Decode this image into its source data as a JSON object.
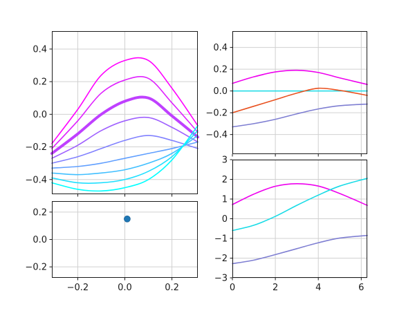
{
  "figure": {
    "background": "#ffffff",
    "axes_background": "#ffffff",
    "grid_color": "#d0d0d0",
    "spine_color": "#1a1a1a",
    "tick_color": "#1a1a1a",
    "label_color": "#1a1a1a",
    "tick_font_size": 13
  },
  "chart_data": [
    {
      "id": "top-left",
      "type": "line",
      "grid": true,
      "xlim": [
        -0.31,
        0.31
      ],
      "ylim": [
        -0.49,
        0.51
      ],
      "xticks": [
        -0.2,
        0.0,
        0.2
      ],
      "xtick_labels": [
        "−0.2",
        "0.0",
        "0.2"
      ],
      "show_xtick_labels": false,
      "yticks": [
        0.4,
        0.2,
        0.0,
        -0.2,
        -0.4
      ],
      "ytick_labels": [
        "0.4",
        "0.2",
        "0.0",
        "−0.2",
        "−0.4"
      ],
      "x": [
        -0.31,
        -0.2,
        -0.1,
        0.0,
        0.1,
        0.2,
        0.31
      ],
      "series": [
        {
          "name": "cool-0-magenta",
          "color": "#ff00ff",
          "width": 1.6,
          "values": [
            -0.18,
            0.03,
            0.24,
            0.33,
            0.33,
            0.16,
            -0.07
          ]
        },
        {
          "name": "cool-1",
          "color": "#df20ff",
          "width": 1.6,
          "values": [
            -0.21,
            -0.04,
            0.13,
            0.21,
            0.22,
            0.07,
            -0.11
          ]
        },
        {
          "name": "cool-2-thick",
          "color": "#bf40ff",
          "width": 4,
          "values": [
            -0.24,
            -0.12,
            0.0,
            0.08,
            0.1,
            -0.01,
            -0.14
          ]
        },
        {
          "name": "cool-3",
          "color": "#9f60ff",
          "width": 1.6,
          "values": [
            -0.27,
            -0.19,
            -0.1,
            -0.04,
            -0.02,
            -0.08,
            -0.17
          ]
        },
        {
          "name": "cool-4",
          "color": "#8080ff",
          "width": 1.6,
          "values": [
            -0.3,
            -0.26,
            -0.21,
            -0.16,
            -0.13,
            -0.16,
            -0.21
          ]
        },
        {
          "name": "cool-5",
          "color": "#609fff",
          "width": 1.6,
          "values": [
            -0.33,
            -0.32,
            -0.3,
            -0.27,
            -0.24,
            -0.21,
            -0.17
          ]
        },
        {
          "name": "cool-6",
          "color": "#40bfff",
          "width": 1.6,
          "values": [
            -0.36,
            -0.37,
            -0.36,
            -0.34,
            -0.3,
            -0.24,
            -0.13
          ]
        },
        {
          "name": "cool-7",
          "color": "#20dfff",
          "width": 1.6,
          "values": [
            -0.39,
            -0.42,
            -0.42,
            -0.4,
            -0.35,
            -0.26,
            -0.1
          ]
        },
        {
          "name": "cool-8-cyan",
          "color": "#00ffff",
          "width": 1.6,
          "values": [
            -0.42,
            -0.46,
            -0.47,
            -0.45,
            -0.4,
            -0.28,
            -0.07
          ]
        }
      ]
    },
    {
      "id": "bottom-left",
      "type": "scatter",
      "grid": true,
      "xlim": [
        -0.31,
        0.31
      ],
      "ylim": [
        -0.28,
        0.28
      ],
      "xticks": [
        -0.2,
        0.0,
        0.2
      ],
      "xtick_labels": [
        "−0.2",
        "0.0",
        "0.2"
      ],
      "show_xtick_labels": true,
      "yticks": [
        0.2,
        0.0,
        -0.2
      ],
      "ytick_labels": [
        "0.2",
        "0.0",
        "−0.2"
      ],
      "points": [
        {
          "x": 0.01,
          "y": 0.15,
          "color": "#1f77b4",
          "edge": "#1a6399",
          "radius": 4.5
        }
      ]
    },
    {
      "id": "top-right",
      "type": "line",
      "grid": true,
      "xlim": [
        0,
        6.28
      ],
      "ylim": [
        -0.58,
        0.55
      ],
      "xticks": [
        0,
        2,
        4,
        6
      ],
      "xtick_labels": [
        "0",
        "2",
        "4",
        "6"
      ],
      "show_xtick_labels": false,
      "yticks": [
        0.4,
        0.2,
        0.0,
        -0.2,
        -0.4
      ],
      "ytick_labels": [
        "0.4",
        "0.2",
        "0.0",
        "−0.2",
        "−0.4"
      ],
      "x": [
        0,
        1,
        2,
        3,
        4,
        5,
        6.28
      ],
      "series": [
        {
          "name": "slateblue",
          "color": "#7e7ed2",
          "width": 1.6,
          "values": [
            -0.33,
            -0.3,
            -0.26,
            -0.21,
            -0.165,
            -0.135,
            -0.12
          ]
        },
        {
          "name": "cyan-flat",
          "color": "#17dbe6",
          "width": 1.6,
          "values": [
            0,
            0,
            0,
            0,
            0,
            0,
            0
          ]
        },
        {
          "name": "orangered",
          "color": "#e8501e",
          "width": 1.6,
          "values": [
            -0.2,
            -0.14,
            -0.08,
            -0.02,
            0.025,
            0.005,
            -0.04
          ]
        },
        {
          "name": "magenta",
          "color": "#ee00ee",
          "width": 1.6,
          "values": [
            0.07,
            0.13,
            0.175,
            0.19,
            0.17,
            0.12,
            0.06
          ]
        }
      ]
    },
    {
      "id": "bottom-right",
      "type": "line",
      "grid": true,
      "xlim": [
        0,
        6.28
      ],
      "ylim": [
        -3,
        3
      ],
      "xticks": [
        0,
        2,
        4,
        6
      ],
      "xtick_labels": [
        "0",
        "2",
        "4",
        "6"
      ],
      "show_xtick_labels": true,
      "yticks": [
        3,
        2,
        1,
        0,
        -1,
        -2,
        -3
      ],
      "ytick_labels": [
        "3",
        "2",
        "1",
        "0",
        "−1",
        "−2",
        "−3"
      ],
      "x": [
        0,
        1,
        2,
        3,
        4,
        5,
        6.28
      ],
      "series": [
        {
          "name": "slateblue",
          "color": "#7e7ed2",
          "width": 1.6,
          "values": [
            -2.28,
            -2.1,
            -1.82,
            -1.52,
            -1.22,
            -0.98,
            -0.85
          ]
        },
        {
          "name": "magenta",
          "color": "#ee00ee",
          "width": 1.6,
          "values": [
            0.72,
            1.25,
            1.65,
            1.78,
            1.66,
            1.28,
            0.68
          ]
        },
        {
          "name": "cyan",
          "color": "#17dbe6",
          "width": 1.6,
          "values": [
            -0.6,
            -0.33,
            0.12,
            0.68,
            1.2,
            1.66,
            2.05
          ]
        }
      ]
    }
  ]
}
